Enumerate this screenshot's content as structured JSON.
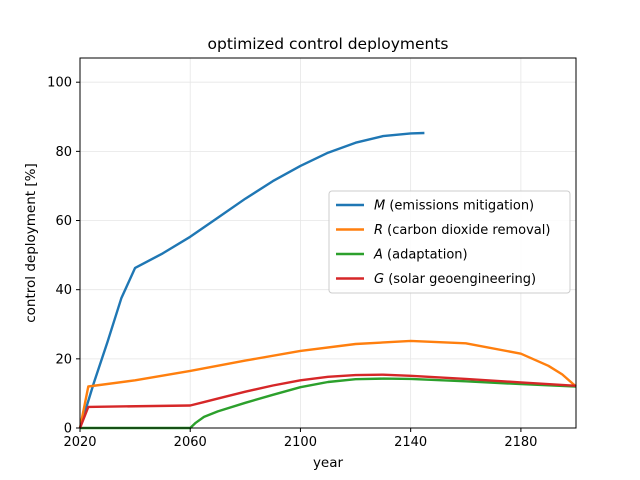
{
  "chart_data": {
    "type": "line",
    "title": "optimized control deployments",
    "xlabel": "year",
    "ylabel": "control deployment [%]",
    "xlim": [
      2020,
      2200
    ],
    "ylim": [
      0,
      107
    ],
    "xticks": [
      2020,
      2060,
      2100,
      2140,
      2180
    ],
    "yticks": [
      0,
      20,
      40,
      60,
      80,
      100
    ],
    "grid": true,
    "legend_position": "center-right",
    "series": [
      {
        "name": "M",
        "desc": " (emissions mitigation)",
        "color": "#1f77b4",
        "x": [
          2020,
          2025,
          2030,
          2035,
          2040,
          2050,
          2060,
          2070,
          2080,
          2090,
          2100,
          2110,
          2120,
          2130,
          2140,
          2145
        ],
        "y": [
          0,
          13,
          25,
          37.5,
          46.3,
          50.5,
          55.3,
          60.8,
          66.3,
          71.4,
          75.8,
          79.6,
          82.5,
          84.4,
          85.2,
          85.3
        ]
      },
      {
        "name": "R",
        "desc": " (carbon dioxide removal)",
        "color": "#ff7f0e",
        "x": [
          2020,
          2023,
          2040,
          2060,
          2080,
          2100,
          2120,
          2140,
          2160,
          2180,
          2190,
          2195,
          2200
        ],
        "y": [
          0,
          12,
          13.8,
          16.5,
          19.5,
          22.3,
          24.3,
          25.2,
          24.5,
          21.5,
          18,
          15.5,
          12
        ]
      },
      {
        "name": "A",
        "desc": " (adaptation)",
        "color": "#2ca02c",
        "x": [
          2020,
          2060,
          2062,
          2065,
          2070,
          2080,
          2090,
          2100,
          2110,
          2120,
          2130,
          2140,
          2160,
          2180,
          2200
        ],
        "y": [
          0,
          0,
          1.5,
          3.2,
          4.8,
          7.3,
          9.6,
          11.8,
          13.3,
          14.1,
          14.3,
          14.2,
          13.5,
          12.7,
          12
        ]
      },
      {
        "name": "G",
        "desc": " (solar geoengineering)",
        "color": "#d62728",
        "x": [
          2020,
          2023,
          2060,
          2065,
          2070,
          2080,
          2090,
          2100,
          2110,
          2120,
          2130,
          2140,
          2160,
          2180,
          2200
        ],
        "y": [
          0,
          6.1,
          6.5,
          7.5,
          8.5,
          10.5,
          12.3,
          13.8,
          14.8,
          15.3,
          15.4,
          15.1,
          14.2,
          13.2,
          12.2
        ]
      }
    ]
  }
}
